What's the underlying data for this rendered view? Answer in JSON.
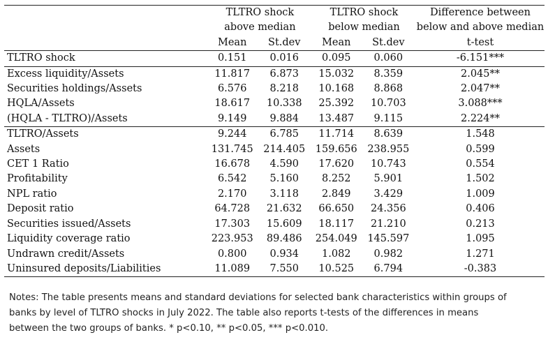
{
  "header": {
    "group1": [
      "TLTRO shock",
      "above median"
    ],
    "group2": [
      "TLTRO shock",
      "below median"
    ],
    "diff": [
      "Difference between",
      "below and above median"
    ],
    "sub": [
      "Mean",
      "St.dev",
      "Mean",
      "St.dev",
      "t-test"
    ]
  },
  "block1": [
    {
      "label": "TLTRO shock",
      "m1": "0.151",
      "s1": "0.016",
      "m2": "0.095",
      "s2": "0.060",
      "t": "-6.151***"
    }
  ],
  "block2": [
    {
      "label": "Excess liquidity/Assets",
      "m1": "11.817",
      "s1": "6.873",
      "m2": "15.032",
      "s2": "8.359",
      "t": "2.045**"
    },
    {
      "label": "Securities holdings/Assets",
      "m1": "6.576",
      "s1": "8.218",
      "m2": "10.168",
      "s2": "8.868",
      "t": "2.047**"
    },
    {
      "label": "HQLA/Assets",
      "m1": "18.617",
      "s1": "10.338",
      "m2": "25.392",
      "s2": "10.703",
      "t": "3.088***"
    },
    {
      "label": "(HQLA - TLTRO)/Assets",
      "m1": "9.149",
      "s1": "9.884",
      "m2": "13.487",
      "s2": "9.115",
      "t": "2.224**"
    }
  ],
  "block3": [
    {
      "label": "TLTRO/Assets",
      "m1": "9.244",
      "s1": "6.785",
      "m2": "11.714",
      "s2": "8.639",
      "t": "1.548"
    },
    {
      "label": "Assets",
      "m1": "131.745",
      "s1": "214.405",
      "m2": "159.656",
      "s2": "238.955",
      "t": "0.599"
    },
    {
      "label": "CET 1 Ratio",
      "m1": "16.678",
      "s1": "4.590",
      "m2": "17.620",
      "s2": "10.743",
      "t": "0.554"
    },
    {
      "label": "Profitability",
      "m1": "6.542",
      "s1": "5.160",
      "m2": "8.252",
      "s2": "5.901",
      "t": "1.502"
    },
    {
      "label": "NPL ratio",
      "m1": "2.170",
      "s1": "3.118",
      "m2": "2.849",
      "s2": "3.429",
      "t": "1.009"
    },
    {
      "label": "Deposit ratio",
      "m1": "64.728",
      "s1": "21.632",
      "m2": "66.650",
      "s2": "24.356",
      "t": "0.406"
    },
    {
      "label": "Securities issued/Assets",
      "m1": "17.303",
      "s1": "15.609",
      "m2": "18.117",
      "s2": "21.210",
      "t": "0.213"
    },
    {
      "label": "Liquidity coverage ratio",
      "m1": "223.953",
      "s1": "89.486",
      "m2": "254.049",
      "s2": "145.597",
      "t": "1.095"
    },
    {
      "label": "Undrawn credit/Assets",
      "m1": "0.800",
      "s1": "0.934",
      "m2": "1.082",
      "s2": "0.982",
      "t": "1.271"
    },
    {
      "label": "Uninsured deposits/Liabilities",
      "m1": "11.089",
      "s1": "7.550",
      "m2": "10.525",
      "s2": "6.794",
      "t": "-0.383"
    }
  ],
  "notes": [
    "Notes: The table presents means and standard deviations for selected bank characteristics within groups of",
    "banks by level of TLTRO shocks in July 2022. The table also reports t-tests of the differences in means",
    "between the two groups of banks. * p<0.10, ** p<0.05, *** p<0.010."
  ]
}
